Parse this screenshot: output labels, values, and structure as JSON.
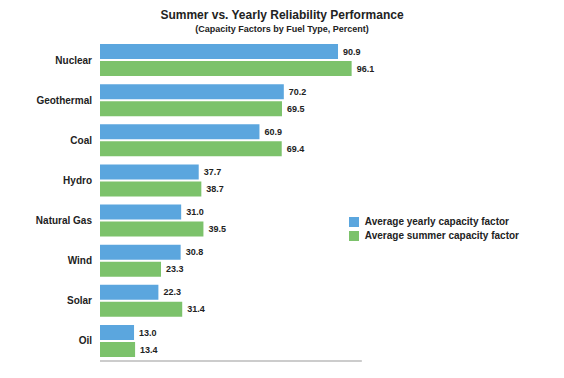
{
  "chart_data": {
    "type": "bar",
    "title": "Summer vs. Yearly Reliability Performance",
    "subtitle": "(Capacity Factors by Fuel Type, Percent)",
    "orientation": "horizontal",
    "categories": [
      "Nuclear",
      "Geothermal",
      "Coal",
      "Hydro",
      "Natural Gas",
      "Wind",
      "Solar",
      "Oil"
    ],
    "series": [
      {
        "name": "Average yearly capacity factor",
        "color": "#5ba6de",
        "values": [
          90.9,
          70.2,
          60.9,
          37.7,
          31.0,
          30.8,
          22.3,
          13.0
        ],
        "value_labels": [
          "90.9",
          "70.2",
          "60.9",
          "37.7",
          "31.0",
          "30.8",
          "22.3",
          "13.0"
        ]
      },
      {
        "name": "Average summer capacity factor",
        "color": "#7cc26b",
        "values": [
          96.1,
          69.5,
          69.4,
          38.7,
          39.5,
          23.3,
          31.4,
          13.4
        ],
        "value_labels": [
          "96.1",
          "69.5",
          "69.4",
          "38.7",
          "39.5",
          "23.3",
          "31.4",
          "13.4"
        ]
      }
    ],
    "xlim": [
      0,
      100
    ],
    "data_labels": true,
    "tick_labels": "y",
    "legend": "right",
    "grid": false
  }
}
